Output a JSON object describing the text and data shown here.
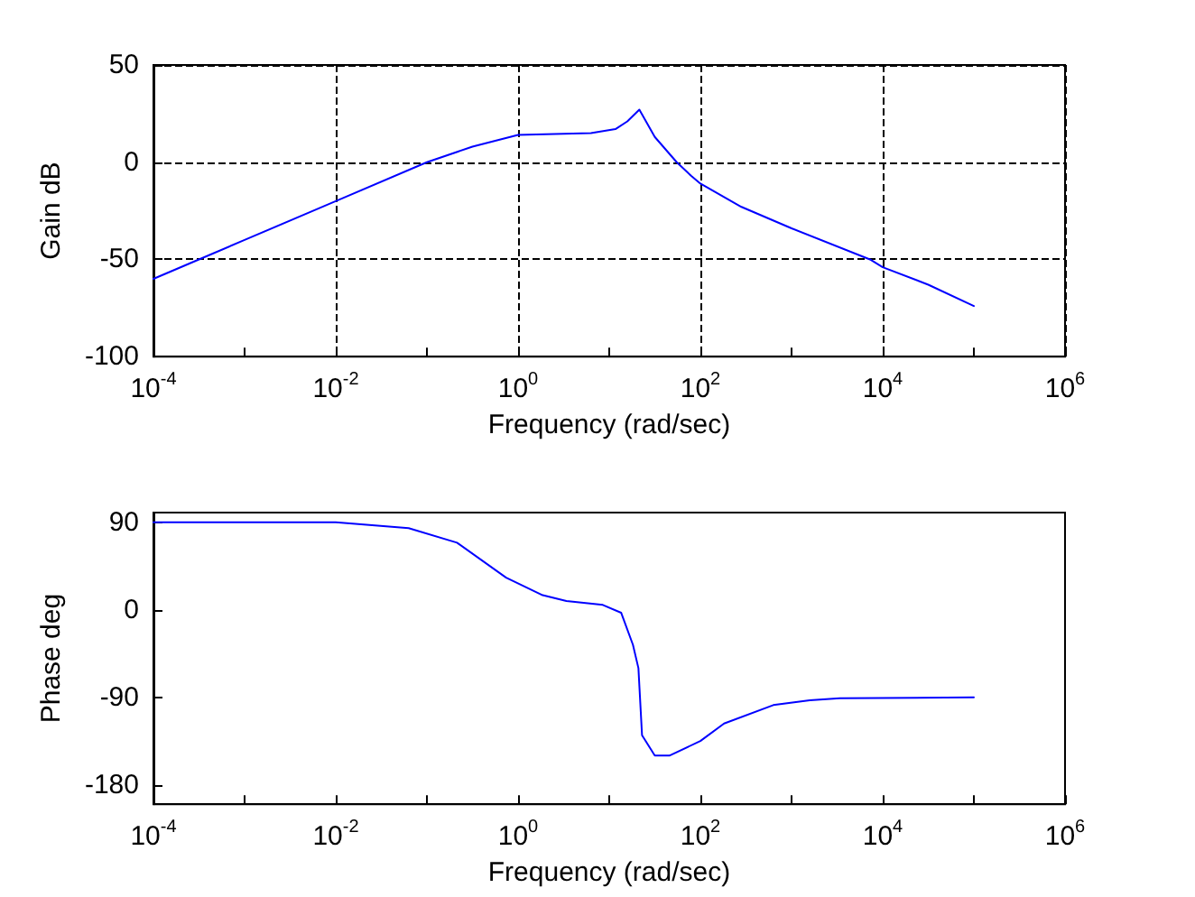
{
  "chart_data": [
    {
      "type": "line",
      "xlabel": "Frequency (rad/sec)",
      "ylabel": "Gain dB",
      "log": "x",
      "grid": true,
      "marker": "none",
      "line_style": "solid",
      "xlim": [
        0.0001,
        1000000
      ],
      "xticks": [
        {
          "value": 0.0001,
          "label": "10$^{-4}$"
        },
        {
          "value": 0.001,
          "label": null
        },
        {
          "value": 0.01,
          "label": "10$^{-2}$"
        },
        {
          "value": 0.1,
          "label": null
        },
        {
          "value": 1,
          "label": "10$^{0}$"
        },
        {
          "value": 10,
          "label": null
        },
        {
          "value": 100,
          "label": "10$^{2}$"
        },
        {
          "value": 1000,
          "label": null
        },
        {
          "value": 10000,
          "label": "10$^{4}$"
        },
        {
          "value": 100000,
          "label": null
        },
        {
          "value": 1000000,
          "label": "10$^{6}$"
        }
      ],
      "ylim": [
        -100,
        50
      ],
      "yticks": [
        -100,
        -50,
        0,
        50
      ],
      "series": [
        {
          "color": "#0000ff",
          "x": [
            0.0001,
            0.000316,
            0.001,
            0.01,
            0.1,
            0.316,
            1,
            6.3,
            11.7,
            15.8,
            21.4,
            31.6,
            55,
            79,
            100,
            282,
            1000,
            7244,
            10000,
            31623,
            100000
          ],
          "values": [
            -60,
            -50,
            -40,
            -20,
            0,
            8,
            14,
            15,
            17,
            21,
            27,
            13,
            0,
            -7,
            -11,
            -23,
            -34,
            -50,
            -54,
            -63,
            -74
          ]
        }
      ]
    },
    {
      "type": "line",
      "xlabel": "Frequency (rad/sec)",
      "ylabel": "Phase deg",
      "log": "x",
      "marker": "none",
      "line_style": "solid",
      "xlim": [
        0.0001,
        1000000
      ],
      "xticks": [
        {
          "value": 0.0001,
          "label": "10$^{-4}$"
        },
        {
          "value": 0.001,
          "label": null
        },
        {
          "value": 0.01,
          "label": "10$^{-2}$"
        },
        {
          "value": 0.1,
          "label": null
        },
        {
          "value": 1,
          "label": "10$^{0}$"
        },
        {
          "value": 10,
          "label": null
        },
        {
          "value": 100,
          "label": "10$^{2}$"
        },
        {
          "value": 1000,
          "label": null
        },
        {
          "value": 10000,
          "label": "10$^{4}$"
        },
        {
          "value": 100000,
          "label": null
        },
        {
          "value": 1000000,
          "label": "10$^{6}$"
        }
      ],
      "ylim": [
        -200,
        100
      ],
      "yticks": [
        -180,
        -90,
        0,
        90
      ],
      "series": [
        {
          "color": "#0000ff",
          "x": [
            0.0001,
            0.01,
            0.063,
            0.214,
            0.74,
            1.86,
            3.39,
            8.5,
            13.5,
            18.2,
            20.9,
            22.9,
            31.6,
            45.7,
            100,
            182,
            631,
            1585,
            3388,
            100000
          ],
          "values": [
            90,
            90,
            84,
            69,
            33,
            15,
            9,
            5,
            -3,
            -36,
            -60,
            -129,
            -150,
            -150,
            -135,
            -117,
            -98,
            -93,
            -91,
            -90
          ]
        }
      ]
    }
  ]
}
